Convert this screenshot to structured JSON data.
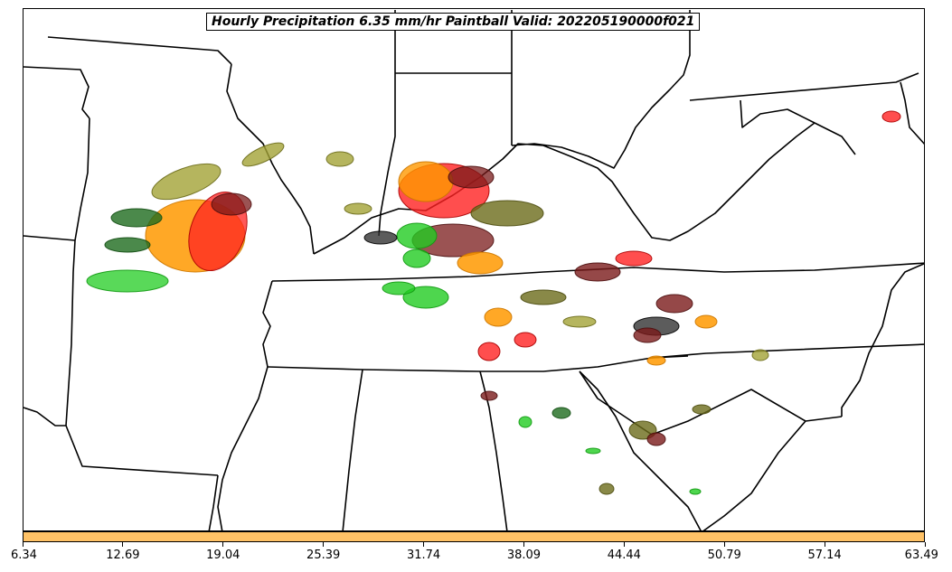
{
  "title": "Hourly Precipitation 6.35 mm/hr Paintball Valid: 202205190000f021",
  "colorbar": {
    "color": "#ffc266",
    "tick_labels": [
      "6.34",
      "12.69",
      "19.04",
      "25.39",
      "31.74",
      "38.09",
      "44.44",
      "50.79",
      "57.14",
      "63.49"
    ]
  },
  "map": {
    "boundary_color": "#000000",
    "ensemble_member_colors": [
      "#22cc22",
      "#a3a336",
      "#ff9900",
      "#ff2222",
      "#7a1a1a",
      "#6b6b1a",
      "#1e6b1e",
      "#333333"
    ]
  }
}
